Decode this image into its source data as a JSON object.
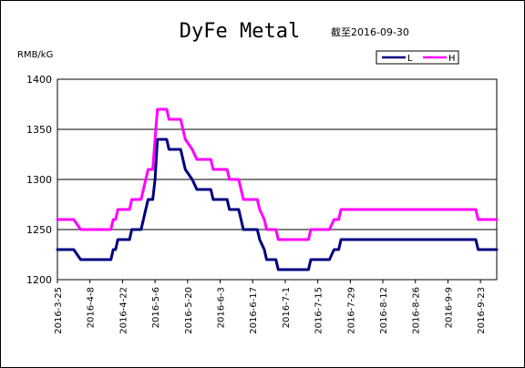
{
  "chart_data": {
    "type": "line",
    "title": "DyFe Metal",
    "subtitle": "截至2016-09-30",
    "ylabel": "RMB/kG",
    "xlabel": "",
    "ylim": [
      1200,
      1400
    ],
    "yticks": [
      1200,
      1250,
      1300,
      1350,
      1400
    ],
    "xticks": [
      "2016-3-25",
      "2016-4-8",
      "2016-4-22",
      "2016-5-6",
      "2016-5-20",
      "2016-6-3",
      "2016-6-17",
      "2016-7-1",
      "2016-7-15",
      "2016-7-29",
      "2016-8-12",
      "2016-8-26",
      "2016-9-9",
      "2016-9-23"
    ],
    "xrange": [
      "2016-3-25",
      "2016-9-30"
    ],
    "grid": "horizontal",
    "legend_position": "top-right",
    "series": [
      {
        "name": "L",
        "color": "#000080",
        "points": [
          [
            "2016-3-25",
            1230
          ],
          [
            "2016-4-1",
            1230
          ],
          [
            "2016-4-4",
            1220
          ],
          [
            "2016-4-17",
            1220
          ],
          [
            "2016-4-18",
            1230
          ],
          [
            "2016-4-19",
            1230
          ],
          [
            "2016-4-20",
            1240
          ],
          [
            "2016-4-25",
            1240
          ],
          [
            "2016-4-26",
            1250
          ],
          [
            "2016-4-30",
            1250
          ],
          [
            "2016-5-2",
            1270
          ],
          [
            "2016-5-3",
            1280
          ],
          [
            "2016-5-5",
            1280
          ],
          [
            "2016-5-6",
            1300
          ],
          [
            "2016-5-7",
            1340
          ],
          [
            "2016-5-11",
            1340
          ],
          [
            "2016-5-12",
            1330
          ],
          [
            "2016-5-17",
            1330
          ],
          [
            "2016-5-19",
            1310
          ],
          [
            "2016-5-22",
            1300
          ],
          [
            "2016-5-24",
            1290
          ],
          [
            "2016-5-30",
            1290
          ],
          [
            "2016-5-31",
            1280
          ],
          [
            "2016-6-6",
            1280
          ],
          [
            "2016-6-7",
            1270
          ],
          [
            "2016-6-11",
            1270
          ],
          [
            "2016-6-13",
            1250
          ],
          [
            "2016-6-19",
            1250
          ],
          [
            "2016-6-20",
            1240
          ],
          [
            "2016-6-22",
            1230
          ],
          [
            "2016-6-23",
            1220
          ],
          [
            "2016-6-27",
            1220
          ],
          [
            "2016-6-28",
            1210
          ],
          [
            "2016-7-11",
            1210
          ],
          [
            "2016-7-12",
            1220
          ],
          [
            "2016-7-20",
            1220
          ],
          [
            "2016-7-22",
            1230
          ],
          [
            "2016-7-24",
            1230
          ],
          [
            "2016-7-25",
            1240
          ],
          [
            "2016-9-21",
            1240
          ],
          [
            "2016-9-22",
            1230
          ],
          [
            "2016-9-30",
            1230
          ]
        ]
      },
      {
        "name": "H",
        "color": "#ff00ff",
        "points": [
          [
            "2016-3-25",
            1260
          ],
          [
            "2016-4-1",
            1260
          ],
          [
            "2016-4-4",
            1250
          ],
          [
            "2016-4-17",
            1250
          ],
          [
            "2016-4-18",
            1260
          ],
          [
            "2016-4-19",
            1260
          ],
          [
            "2016-4-20",
            1270
          ],
          [
            "2016-4-25",
            1270
          ],
          [
            "2016-4-26",
            1280
          ],
          [
            "2016-4-30",
            1280
          ],
          [
            "2016-5-2",
            1300
          ],
          [
            "2016-5-3",
            1310
          ],
          [
            "2016-5-5",
            1310
          ],
          [
            "2016-5-6",
            1340
          ],
          [
            "2016-5-7",
            1370
          ],
          [
            "2016-5-11",
            1370
          ],
          [
            "2016-5-12",
            1360
          ],
          [
            "2016-5-17",
            1360
          ],
          [
            "2016-5-19",
            1340
          ],
          [
            "2016-5-22",
            1330
          ],
          [
            "2016-5-24",
            1320
          ],
          [
            "2016-5-30",
            1320
          ],
          [
            "2016-5-31",
            1310
          ],
          [
            "2016-6-6",
            1310
          ],
          [
            "2016-6-7",
            1300
          ],
          [
            "2016-6-11",
            1300
          ],
          [
            "2016-6-13",
            1280
          ],
          [
            "2016-6-19",
            1280
          ],
          [
            "2016-6-20",
            1270
          ],
          [
            "2016-6-22",
            1260
          ],
          [
            "2016-6-23",
            1250
          ],
          [
            "2016-6-27",
            1250
          ],
          [
            "2016-6-28",
            1240
          ],
          [
            "2016-7-11",
            1240
          ],
          [
            "2016-7-12",
            1250
          ],
          [
            "2016-7-20",
            1250
          ],
          [
            "2016-7-22",
            1260
          ],
          [
            "2016-7-24",
            1260
          ],
          [
            "2016-7-25",
            1270
          ],
          [
            "2016-9-21",
            1270
          ],
          [
            "2016-9-22",
            1260
          ],
          [
            "2016-9-30",
            1260
          ]
        ]
      }
    ]
  }
}
